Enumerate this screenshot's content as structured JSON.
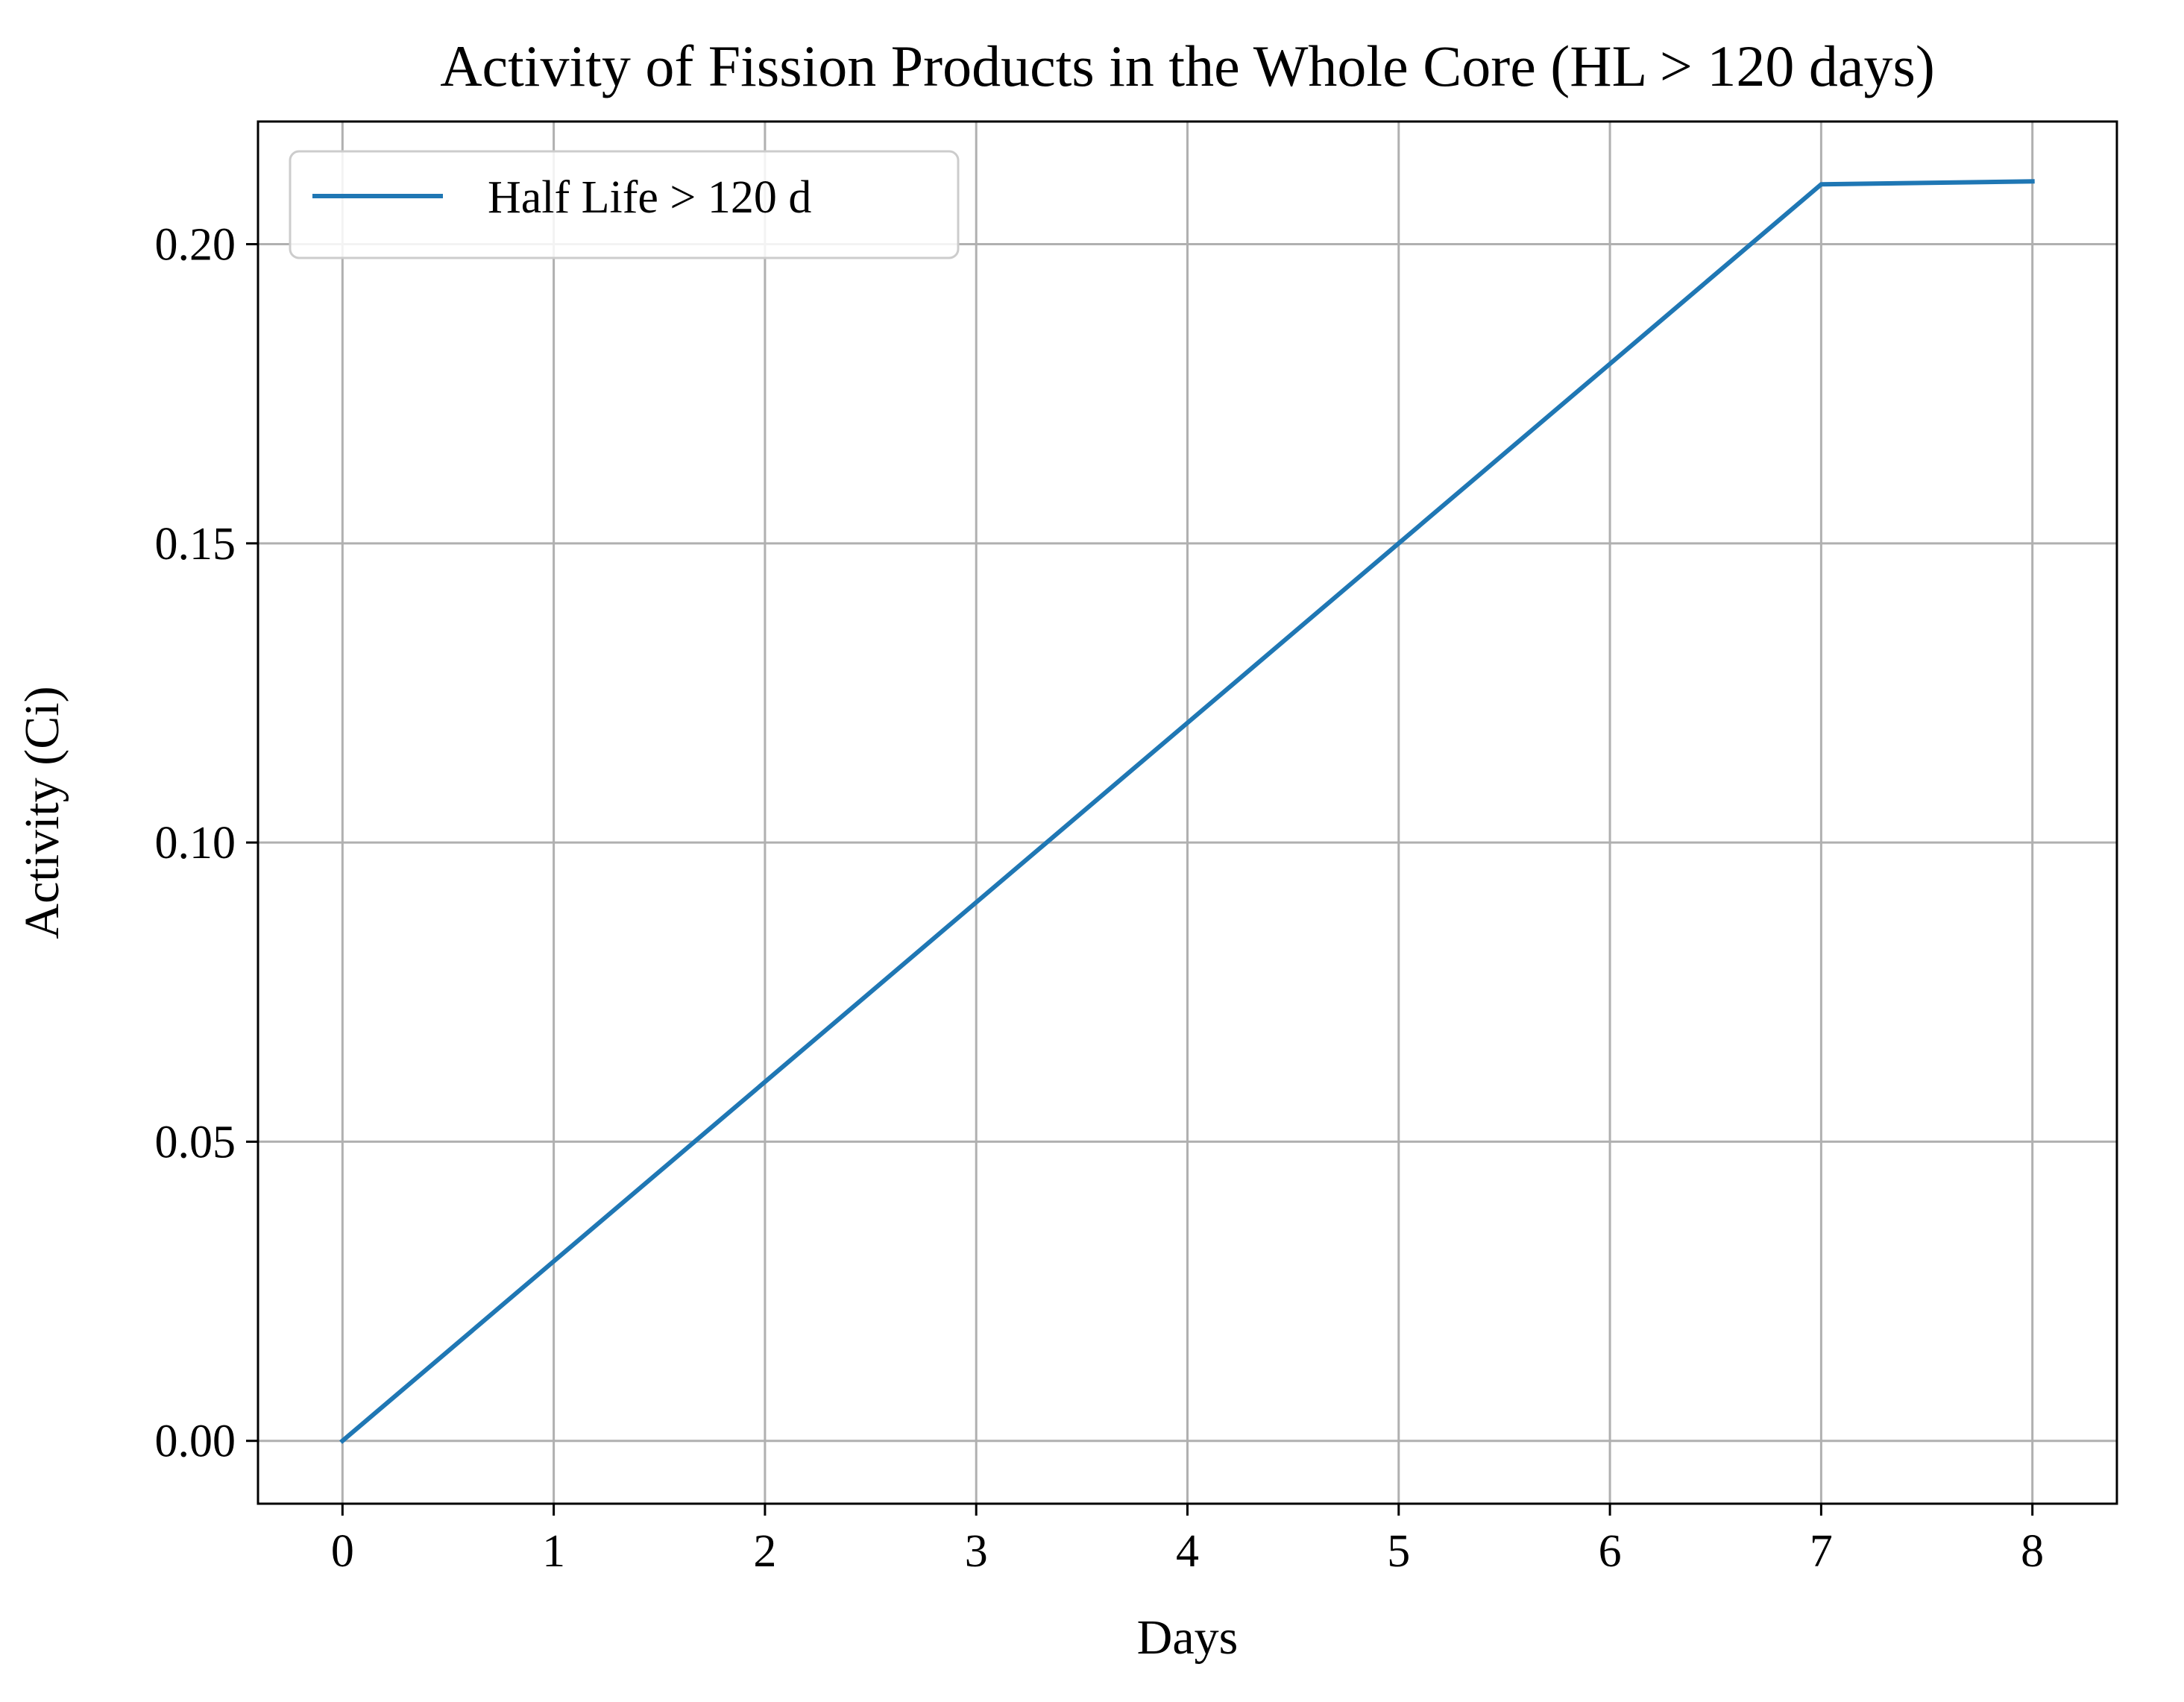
{
  "chart_data": {
    "type": "line",
    "title": "Activity of Fission Products in the Whole Core (HL > 120 days)",
    "xlabel": "Days",
    "ylabel": "Activity (Ci)",
    "xlim": [
      -0.4,
      8.4
    ],
    "ylim": [
      -0.0105,
      0.2205
    ],
    "xticks": [
      0,
      1,
      2,
      3,
      4,
      5,
      6,
      7,
      8
    ],
    "xtick_labels": [
      "0",
      "1",
      "2",
      "3",
      "4",
      "5",
      "6",
      "7",
      "8"
    ],
    "yticks": [
      0.0,
      0.05,
      0.1,
      0.15,
      0.2
    ],
    "ytick_labels": [
      "0.00",
      "0.05",
      "0.10",
      "0.15",
      "0.20"
    ],
    "grid": true,
    "legend": "top-left",
    "series": [
      {
        "name": "Half Life > 120 d",
        "color": "#1f77b4",
        "x": [
          0,
          1,
          2,
          3,
          4,
          5,
          6,
          7,
          8
        ],
        "y": [
          0.0,
          0.03,
          0.06,
          0.09,
          0.12,
          0.15,
          0.18,
          0.21,
          0.2105
        ]
      }
    ]
  }
}
